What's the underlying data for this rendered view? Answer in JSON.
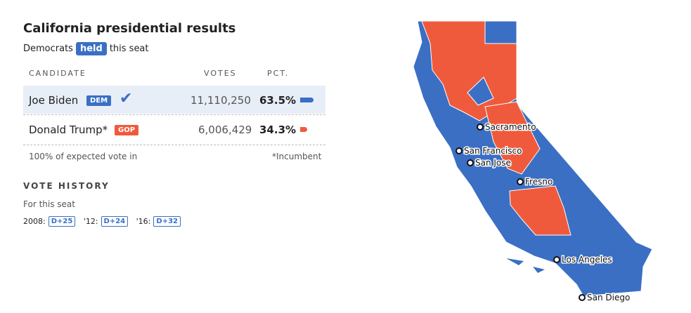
{
  "header": {
    "title": "California presidential results",
    "status_before": "Democrats",
    "status_badge": "held",
    "status_after": "this seat"
  },
  "table": {
    "columns": [
      "CANDIDATE",
      "VOTES",
      "PCT."
    ],
    "rows": [
      {
        "name": "Joe Biden",
        "party": "DEM",
        "votes": "11,110,250",
        "pct": {
          "value": 63.5,
          "label": "63.5%"
        }
      },
      {
        "name": "Donald Trump*",
        "party": "GOP",
        "votes": "6,006,429",
        "pct": {
          "value": 34.3,
          "label": "34.3%"
        }
      }
    ]
  },
  "footer": {
    "reporting": "100% of expected vote in",
    "note": "*Incumbent"
  },
  "history": {
    "title": "VOTE HISTORY",
    "subtitle": "For this seat",
    "items": [
      {
        "year": "2008:",
        "margin": "D+25"
      },
      {
        "year": "'12:",
        "margin": "D+24"
      },
      {
        "year": "'16:",
        "margin": "D+32"
      }
    ]
  },
  "map": {
    "cities": [
      "Sacramento",
      "San Francisco",
      "San Jose",
      "Fresno",
      "Los Angeles",
      "San Diego"
    ]
  }
}
